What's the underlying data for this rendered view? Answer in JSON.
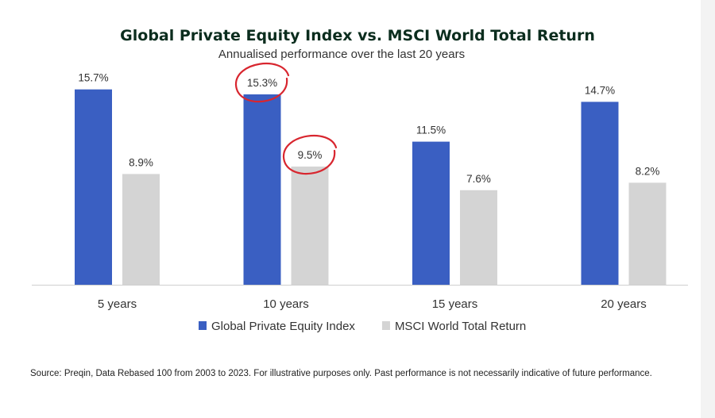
{
  "chart_data": {
    "type": "bar",
    "title": "Global Private Equity Index vs. MSCI World Total Return",
    "subtitle": "Annualised performance over the last 20 years",
    "categories": [
      "5 years",
      "10 years",
      "15 years",
      "20 years"
    ],
    "series": [
      {
        "name": "Global Private Equity Index",
        "values": [
          15.7,
          15.3,
          11.5,
          14.7
        ],
        "labels": [
          "15.7%",
          "15.3%",
          "11.5%",
          "14.7%"
        ],
        "color": "#3a5fc2"
      },
      {
        "name": "MSCI World Total Return",
        "values": [
          8.9,
          9.5,
          7.6,
          8.2
        ],
        "labels": [
          "8.9%",
          "9.5%",
          "7.6%",
          "8.2%"
        ],
        "color": "#d4d4d4"
      }
    ],
    "ylim": [
      0,
      16
    ],
    "grid": false,
    "legend_position": "bottom",
    "annotations": [
      {
        "type": "hand-drawn circle",
        "target": "10 years / Global Private Equity Index",
        "color": "#d8262f"
      },
      {
        "type": "hand-drawn circle",
        "target": "10 years / MSCI World Total Return",
        "color": "#d8262f"
      }
    ]
  },
  "source_note": "Source: Preqin, Data Rebased 100 from 2003 to 2023. For illustrative purposes only. Past performance is not necessarily indicative of future performance."
}
